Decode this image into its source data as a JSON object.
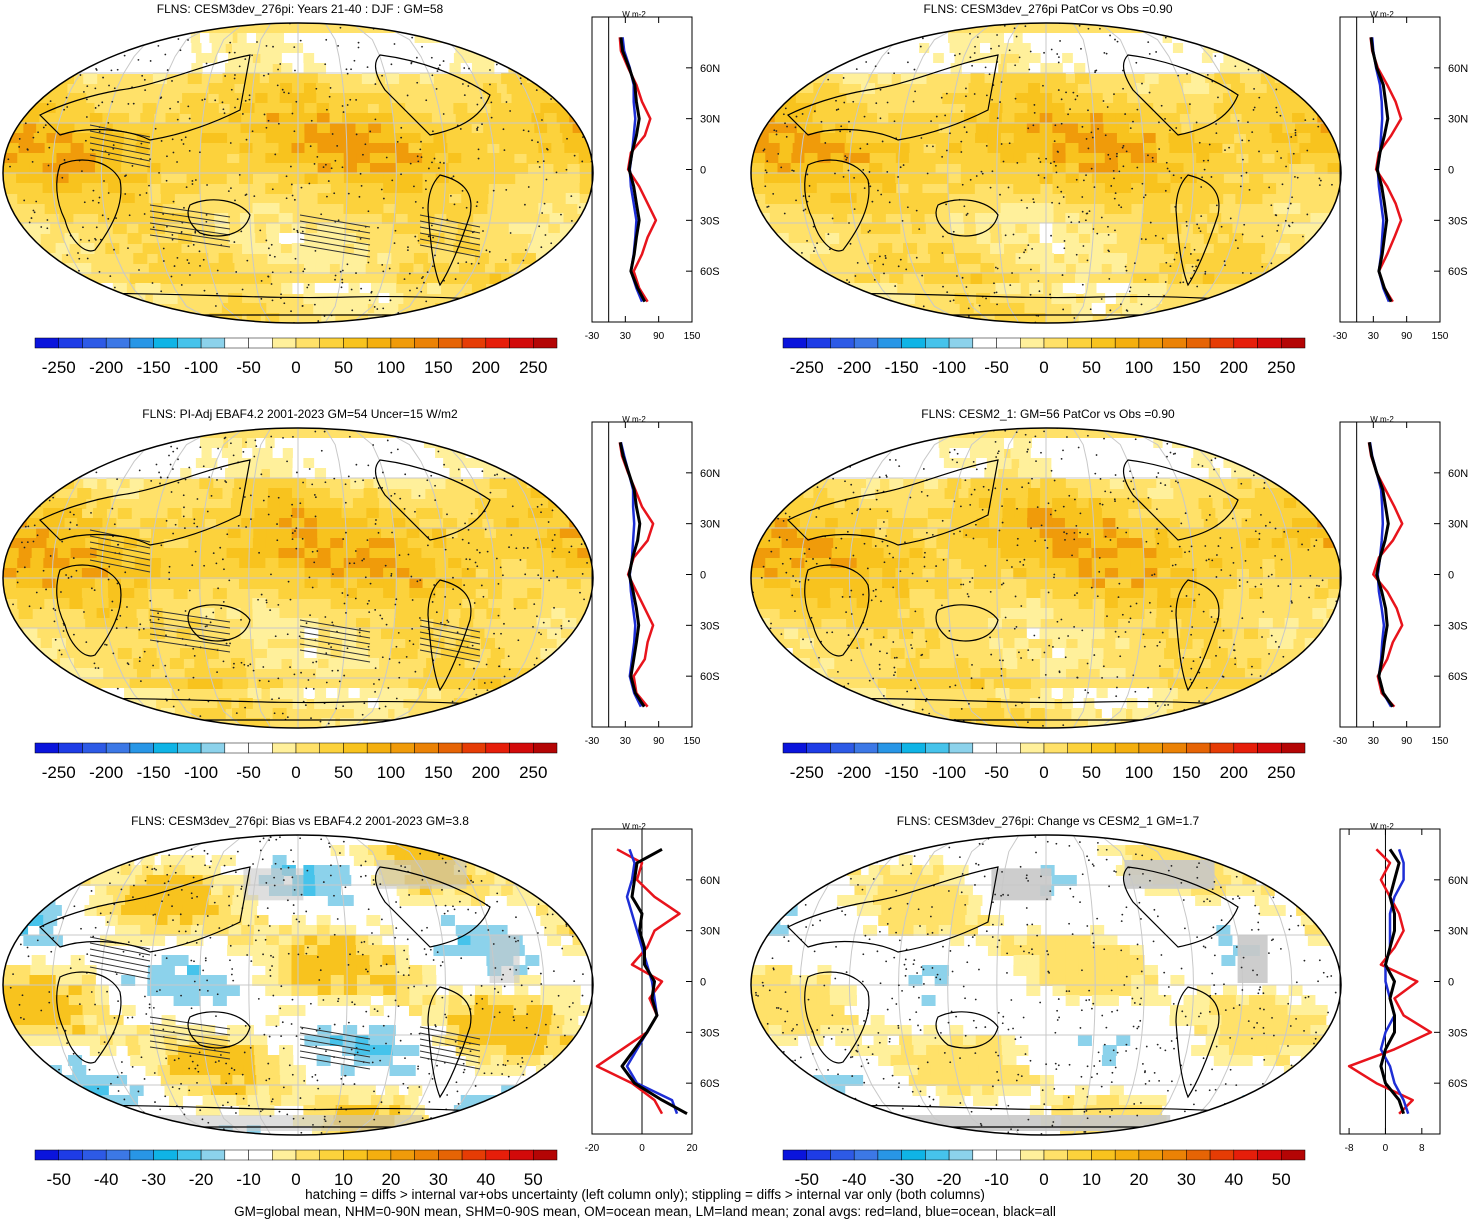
{
  "footer": {
    "line1": "hatching = diffs > internal var+obs uncertainty (left column only); stippling = diffs > internal var only (both columns)",
    "line2": "GM=global mean, NHM=0-90N mean, SHM=0-90S mean, OM=ocean mean, LM=land mean; zonal avgs: red=land, blue=ocean, black=all"
  },
  "colors": {
    "red": "#e8141c",
    "blue": "#1e2ed6",
    "black": "#000000",
    "land_gray": "#c8c8c8",
    "grid": "#c8c8c8"
  },
  "chart_data": [
    {
      "type": "heatmap",
      "title": "FLNS: CESM3dev_276pi: Years 21-40 : DJF : GM=58",
      "field": "base",
      "hatching": true,
      "stippling": true,
      "colorbar": {
        "ticks": [
          "-250",
          "-200",
          "-150",
          "-100",
          "-50",
          "0",
          "50",
          "100",
          "150",
          "200",
          "250"
        ],
        "colors": [
          "#0a14dc",
          "#1e3ce6",
          "#2d5ae6",
          "#3c78e6",
          "#2896e6",
          "#0fb4e6",
          "#46c3eb",
          "#8cd2eb",
          "#ffffff",
          "#ffffff",
          "#fff09b",
          "#ffe169",
          "#fcd23c",
          "#f8c31e",
          "#f4af0f",
          "#f09b0a",
          "#eb8205",
          "#e66405",
          "#e63c05",
          "#e61e0a",
          "#d20a0a",
          "#b40505"
        ]
      },
      "zonal": {
        "units": "W m-2",
        "xticks": [
          "-30",
          "30",
          "90",
          "150"
        ],
        "xmin": -30,
        "xmax": 150,
        "yticks": [
          "60N",
          "30N",
          "0",
          "30S",
          "60S"
        ],
        "lat": [
          78,
          70,
          60,
          50,
          40,
          30,
          20,
          10,
          0,
          -10,
          -20,
          -30,
          -40,
          -50,
          -60,
          -70,
          -78
        ],
        "land": [
          20,
          22,
          35,
          50,
          60,
          75,
          65,
          40,
          35,
          55,
          70,
          85,
          70,
          60,
          45,
          55,
          70
        ],
        "ocean": [
          25,
          28,
          38,
          45,
          45,
          48,
          45,
          42,
          38,
          40,
          45,
          50,
          48,
          45,
          40,
          50,
          60
        ],
        "all": [
          22,
          25,
          37,
          47,
          50,
          55,
          50,
          42,
          37,
          45,
          50,
          55,
          50,
          46,
          40,
          52,
          65
        ]
      }
    },
    {
      "type": "heatmap",
      "title": "FLNS: CESM3dev_276pi PatCor vs Obs =0.90",
      "field": "base",
      "hatching": false,
      "stippling": true,
      "colorbar": {
        "ticks": [
          "-250",
          "-200",
          "-150",
          "-100",
          "-50",
          "0",
          "50",
          "100",
          "150",
          "200",
          "250"
        ],
        "colors": [
          "#0a14dc",
          "#1e3ce6",
          "#2d5ae6",
          "#3c78e6",
          "#2896e6",
          "#0fb4e6",
          "#46c3eb",
          "#8cd2eb",
          "#ffffff",
          "#ffffff",
          "#fff09b",
          "#ffe169",
          "#fcd23c",
          "#f8c31e",
          "#f4af0f",
          "#f09b0a",
          "#eb8205",
          "#e66405",
          "#e63c05",
          "#e61e0a",
          "#d20a0a",
          "#b40505"
        ]
      },
      "zonal": {
        "units": "W m-2",
        "xticks": [
          "-30",
          "30",
          "90",
          "150"
        ],
        "xmin": -30,
        "xmax": 150,
        "yticks": [
          "60N",
          "30N",
          "0",
          "30S",
          "60S"
        ],
        "lat": [
          78,
          70,
          60,
          50,
          40,
          30,
          20,
          10,
          0,
          -10,
          -20,
          -30,
          -40,
          -50,
          -60,
          -70,
          -78
        ],
        "land": [
          25,
          28,
          38,
          55,
          70,
          80,
          62,
          40,
          35,
          55,
          70,
          80,
          68,
          55,
          40,
          50,
          65
        ],
        "ocean": [
          28,
          30,
          35,
          42,
          45,
          46,
          44,
          42,
          38,
          40,
          44,
          48,
          46,
          44,
          40,
          48,
          58
        ],
        "all": [
          26,
          29,
          36,
          48,
          52,
          56,
          50,
          42,
          37,
          45,
          50,
          54,
          50,
          46,
          40,
          50,
          62
        ]
      }
    },
    {
      "type": "heatmap",
      "title": "FLNS: PI-Adj EBAF4.2 2001-2023 GM=54 Uncer=15 W/m2",
      "field": "obs",
      "hatching": true,
      "stippling": true,
      "colorbar": {
        "ticks": [
          "-250",
          "-200",
          "-150",
          "-100",
          "-50",
          "0",
          "50",
          "100",
          "150",
          "200",
          "250"
        ],
        "colors": [
          "#0a14dc",
          "#1e3ce6",
          "#2d5ae6",
          "#3c78e6",
          "#2896e6",
          "#0fb4e6",
          "#46c3eb",
          "#8cd2eb",
          "#ffffff",
          "#ffffff",
          "#fff09b",
          "#ffe169",
          "#fcd23c",
          "#f8c31e",
          "#f4af0f",
          "#f09b0a",
          "#eb8205",
          "#e66405",
          "#e63c05",
          "#e61e0a",
          "#d20a0a",
          "#b40505"
        ]
      },
      "zonal": {
        "units": "W m-2",
        "xticks": [
          "-30",
          "30",
          "90",
          "150"
        ],
        "xmin": -30,
        "xmax": 150,
        "yticks": [
          "60N",
          "30N",
          "0",
          "30S",
          "60S"
        ],
        "lat": [
          78,
          70,
          60,
          50,
          40,
          30,
          20,
          10,
          0,
          -10,
          -20,
          -30,
          -40,
          -50,
          -60,
          -70,
          -78
        ],
        "land": [
          20,
          24,
          35,
          48,
          60,
          80,
          70,
          45,
          35,
          50,
          65,
          80,
          70,
          65,
          45,
          50,
          70
        ],
        "ocean": [
          22,
          28,
          36,
          44,
          44,
          46,
          44,
          42,
          38,
          40,
          44,
          48,
          46,
          42,
          38,
          46,
          58
        ],
        "all": [
          21,
          26,
          36,
          46,
          50,
          56,
          52,
          43,
          37,
          44,
          50,
          54,
          50,
          45,
          40,
          48,
          64
        ]
      }
    },
    {
      "type": "heatmap",
      "title": "FLNS: CESM2_1: GM=56 PatCor vs Obs =0.90",
      "field": "obs",
      "hatching": false,
      "stippling": true,
      "colorbar": {
        "ticks": [
          "-250",
          "-200",
          "-150",
          "-100",
          "-50",
          "0",
          "50",
          "100",
          "150",
          "200",
          "250"
        ],
        "colors": [
          "#0a14dc",
          "#1e3ce6",
          "#2d5ae6",
          "#3c78e6",
          "#2896e6",
          "#0fb4e6",
          "#46c3eb",
          "#8cd2eb",
          "#ffffff",
          "#ffffff",
          "#fff09b",
          "#ffe169",
          "#fcd23c",
          "#f8c31e",
          "#f4af0f",
          "#f09b0a",
          "#eb8205",
          "#e66405",
          "#e63c05",
          "#e61e0a",
          "#d20a0a",
          "#b40505"
        ]
      },
      "zonal": {
        "units": "W m-2",
        "xticks": [
          "-30",
          "30",
          "90",
          "150"
        ],
        "xmin": -30,
        "xmax": 150,
        "yticks": [
          "60N",
          "30N",
          "0",
          "30S",
          "60S"
        ],
        "lat": [
          78,
          70,
          60,
          50,
          40,
          30,
          20,
          10,
          0,
          -10,
          -20,
          -30,
          -40,
          -50,
          -60,
          -70,
          -78
        ],
        "land": [
          22,
          26,
          36,
          52,
          68,
          82,
          65,
          40,
          30,
          55,
          72,
          82,
          65,
          55,
          38,
          45,
          68
        ],
        "ocean": [
          24,
          28,
          36,
          44,
          46,
          47,
          45,
          42,
          38,
          40,
          45,
          49,
          46,
          44,
          40,
          48,
          62
        ],
        "all": [
          23,
          27,
          36,
          47,
          52,
          57,
          51,
          42,
          36,
          45,
          52,
          55,
          50,
          46,
          40,
          48,
          65
        ]
      }
    },
    {
      "type": "heatmap",
      "title": "FLNS: CESM3dev_276pi: Bias vs EBAF4.2 2001-2023 GM=3.8",
      "field": "bias",
      "hatching": true,
      "stippling": true,
      "colorbar": {
        "ticks": [
          "-50",
          "-40",
          "-30",
          "-20",
          "-10",
          "0",
          "10",
          "20",
          "30",
          "40",
          "50"
        ],
        "colors": [
          "#0a14dc",
          "#1e3ce6",
          "#2d5ae6",
          "#3c78e6",
          "#2896e6",
          "#0fb4e6",
          "#46c3eb",
          "#8cd2eb",
          "#ffffff",
          "#ffffff",
          "#fff09b",
          "#ffe169",
          "#fcd23c",
          "#f8c31e",
          "#f4af0f",
          "#f09b0a",
          "#eb8205",
          "#e66405",
          "#e63c05",
          "#e61e0a",
          "#d20a0a",
          "#b40505"
        ]
      },
      "zonal": {
        "units": "W m-2",
        "xticks": [
          "-20",
          "0",
          "20"
        ],
        "xmin": -20,
        "xmax": 20,
        "yticks": [
          "60N",
          "30N",
          "0",
          "30S",
          "60S"
        ],
        "lat": [
          78,
          70,
          60,
          50,
          40,
          30,
          20,
          10,
          0,
          -10,
          -20,
          -30,
          -40,
          -50,
          -60,
          -70,
          -78
        ],
        "land": [
          -10,
          0,
          -2,
          5,
          15,
          5,
          2,
          -4,
          8,
          3,
          6,
          2,
          -8,
          -18,
          -4,
          5,
          8
        ],
        "ocean": [
          -5,
          -3,
          -4,
          -6,
          -4,
          -2,
          0,
          2,
          4,
          5,
          6,
          2,
          -2,
          -6,
          -2,
          12,
          14
        ],
        "all": [
          8,
          -2,
          -3,
          -4,
          0,
          -1,
          1,
          1,
          5,
          4,
          6,
          2,
          -3,
          -8,
          -3,
          8,
          18
        ]
      }
    },
    {
      "type": "heatmap",
      "title": "FLNS: CESM3dev_276pi: Change vs CESM2_1 GM=1.7",
      "field": "change",
      "hatching": false,
      "stippling": true,
      "colorbar": {
        "ticks": [
          "-50",
          "-40",
          "-30",
          "-20",
          "-10",
          "0",
          "10",
          "20",
          "30",
          "40",
          "50"
        ],
        "colors": [
          "#0a14dc",
          "#1e3ce6",
          "#2d5ae6",
          "#3c78e6",
          "#2896e6",
          "#0fb4e6",
          "#46c3eb",
          "#8cd2eb",
          "#ffffff",
          "#ffffff",
          "#fff09b",
          "#ffe169",
          "#fcd23c",
          "#f8c31e",
          "#f4af0f",
          "#f09b0a",
          "#eb8205",
          "#e66405",
          "#e63c05",
          "#e61e0a",
          "#d20a0a",
          "#b40505"
        ]
      },
      "zonal": {
        "units": "W m-2",
        "xticks": [
          "-8",
          "0",
          "8"
        ],
        "xmin": -10,
        "xmax": 12,
        "yticks": [
          "60N",
          "30N",
          "0",
          "30S",
          "60S"
        ],
        "lat": [
          78,
          70,
          60,
          50,
          40,
          30,
          20,
          10,
          0,
          -10,
          -20,
          -30,
          -40,
          -50,
          -60,
          -70,
          -78
        ],
        "land": [
          -2,
          1,
          -1,
          1,
          3,
          4,
          2,
          -1,
          7,
          2,
          4,
          10,
          2,
          -8,
          -2,
          6,
          3
        ],
        "ocean": [
          3,
          4,
          4,
          2,
          1,
          1,
          1,
          0,
          0,
          1,
          2,
          0,
          -1,
          1,
          2,
          4,
          5
        ],
        "all": [
          1,
          3,
          2,
          1,
          2,
          2,
          1,
          0,
          2,
          1,
          2,
          2,
          0,
          -1,
          0,
          3,
          4
        ]
      }
    }
  ]
}
